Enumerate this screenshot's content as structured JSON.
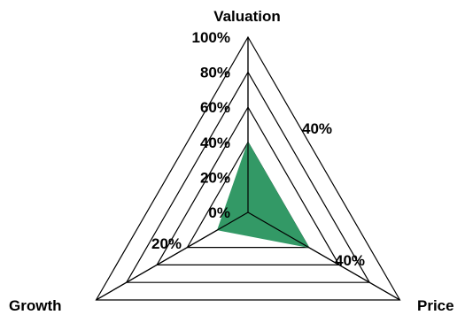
{
  "chart_data": {
    "type": "radar",
    "axes": [
      "Valuation",
      "Price",
      "Growth"
    ],
    "radial_ticks": [
      "0%",
      "20%",
      "40%",
      "60%",
      "80%",
      "100%"
    ],
    "rlim": [
      0,
      100
    ],
    "grid": true,
    "series": [
      {
        "values": [
          40,
          40,
          20
        ],
        "labels": [
          "",
          "40%",
          "20%"
        ]
      }
    ],
    "annotations": [
      "40%"
    ],
    "colors": {
      "fill": "#339966",
      "grid": "#000000",
      "axis": "#000000"
    }
  }
}
